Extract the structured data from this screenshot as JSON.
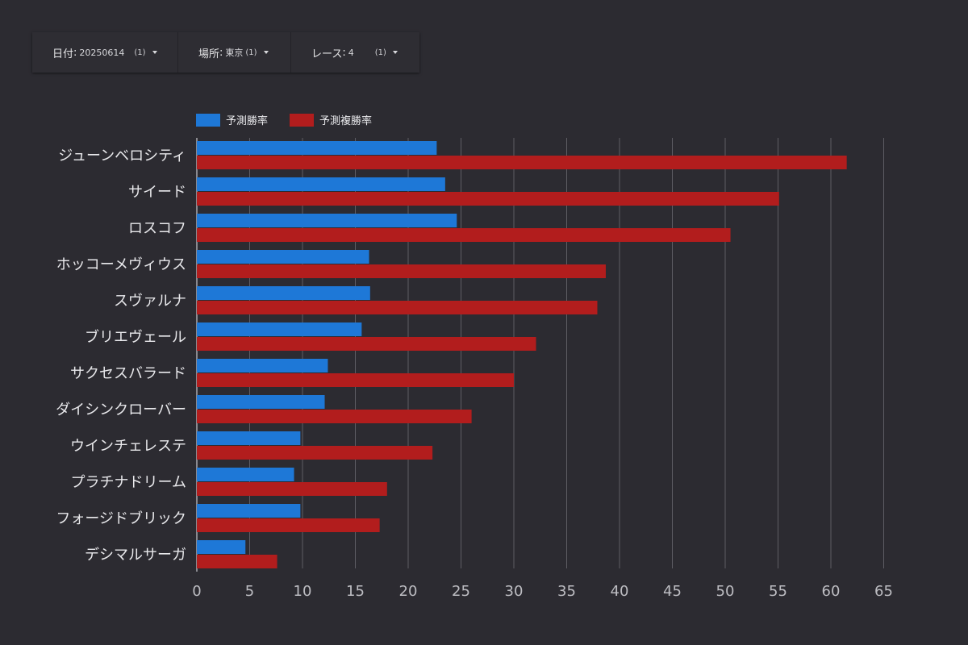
{
  "filters": [
    {
      "label": "日付",
      "value": "20250614",
      "count": "(1)"
    },
    {
      "label": "場所",
      "value": "東京",
      "count": "(1)"
    },
    {
      "label": "レース",
      "value": "4",
      "count": "(1)"
    }
  ],
  "colors": {
    "series1": "#1e78d7",
    "series2": "#b21d1d",
    "grid": "#5e5d64",
    "axis": "#bdbdc2",
    "label": "#e9e9ec"
  },
  "chart_data": {
    "type": "bar",
    "orientation": "horizontal",
    "categories": [
      "ジューンベロシティ",
      "サイード",
      "ロスコフ",
      "ホッコーメヴィウス",
      "スヴァルナ",
      "ブリエヴェール",
      "サクセスバラード",
      "ダイシンクローバー",
      "ウインチェレステ",
      "プラチナドリーム",
      "フォージドブリック",
      "デシマルサーガ"
    ],
    "series": [
      {
        "name": "予測勝率",
        "color": "#1e78d7",
        "values": [
          22.7,
          23.5,
          24.6,
          16.3,
          16.4,
          15.6,
          12.4,
          12.1,
          9.8,
          9.2,
          9.8,
          4.6
        ]
      },
      {
        "name": "予測複勝率",
        "color": "#b21d1d",
        "values": [
          61.5,
          55.1,
          50.5,
          38.7,
          37.9,
          32.1,
          30.0,
          26.0,
          22.3,
          18.0,
          17.3,
          7.6
        ]
      }
    ],
    "x_ticks": [
      0,
      5,
      10,
      15,
      20,
      25,
      30,
      35,
      40,
      45,
      50,
      55,
      60,
      65
    ],
    "xlim": [
      0,
      65
    ],
    "grid": true,
    "legend_position": "top-left"
  }
}
